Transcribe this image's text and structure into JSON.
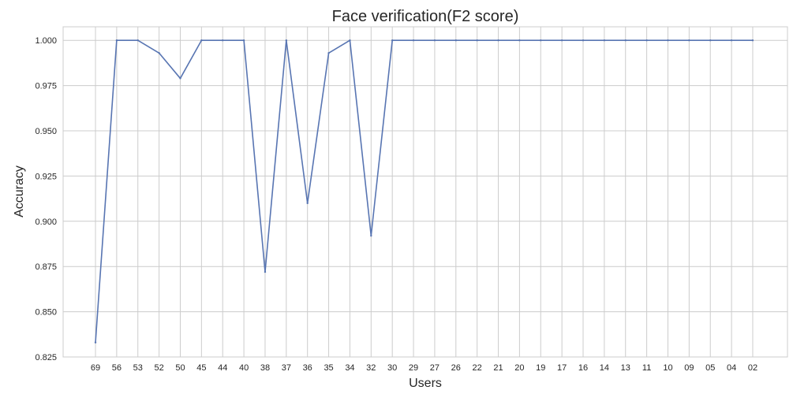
{
  "chart_data": {
    "type": "line",
    "title": "Face verification(F2 score)",
    "xlabel": "Users",
    "ylabel": "Accuracy",
    "categories": [
      "69",
      "56",
      "53",
      "52",
      "50",
      "45",
      "44",
      "40",
      "38",
      "37",
      "36",
      "35",
      "34",
      "32",
      "30",
      "29",
      "27",
      "26",
      "22",
      "21",
      "20",
      "19",
      "17",
      "16",
      "14",
      "13",
      "11",
      "10",
      "09",
      "05",
      "04",
      "02"
    ],
    "series": [
      {
        "values": [
          0.833,
          1.0,
          1.0,
          0.993,
          0.979,
          1.0,
          1.0,
          1.0,
          0.872,
          1.0,
          0.91,
          0.993,
          1.0,
          0.892,
          1.0,
          1.0,
          1.0,
          1.0,
          1.0,
          1.0,
          1.0,
          1.0,
          1.0,
          1.0,
          1.0,
          1.0,
          1.0,
          1.0,
          1.0,
          1.0,
          1.0,
          1.0
        ],
        "color": "#5875b2"
      }
    ],
    "ylim": [
      0.825,
      1.0075
    ],
    "yticks": [
      "0.825",
      "0.850",
      "0.875",
      "0.900",
      "0.925",
      "0.950",
      "0.975",
      "1.000"
    ],
    "grid": true,
    "legend": "none"
  }
}
